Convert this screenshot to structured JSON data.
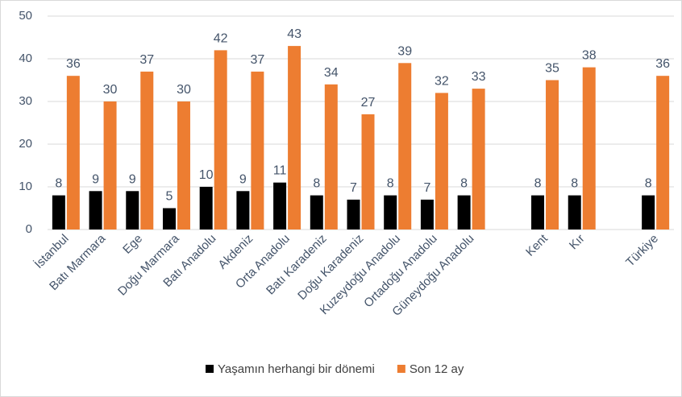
{
  "chart_data": {
    "type": "bar",
    "categories": [
      "İstanbul",
      "Batı Marmara",
      "Ege",
      "Doğu Marmara",
      "Batı Anadolu",
      "Akdeniz",
      "Orta Anadolu",
      "Batı Karadeniz",
      "Doğu Karadeniz",
      "Kuzeydoğu Anadolu",
      "Ortadoğu Anadolu",
      "Güneydoğu Anadolu",
      null,
      "Kent",
      "Kır",
      null,
      "Türkiye"
    ],
    "series": [
      {
        "name": "Yaşamın herhangi bir dönemi",
        "color": "#000000",
        "values": [
          8,
          9,
          9,
          5,
          10,
          9,
          11,
          8,
          7,
          8,
          7,
          8,
          null,
          8,
          8,
          null,
          8
        ]
      },
      {
        "name": "Son 12 ay",
        "color": "#ed7d31",
        "values": [
          36,
          30,
          37,
          30,
          42,
          37,
          43,
          34,
          27,
          39,
          32,
          33,
          null,
          35,
          38,
          null,
          36
        ]
      }
    ],
    "ylim": [
      0,
      50
    ],
    "yticks": [
      0,
      10,
      20,
      30,
      40,
      50
    ],
    "grid": true,
    "legend": "bottom"
  }
}
